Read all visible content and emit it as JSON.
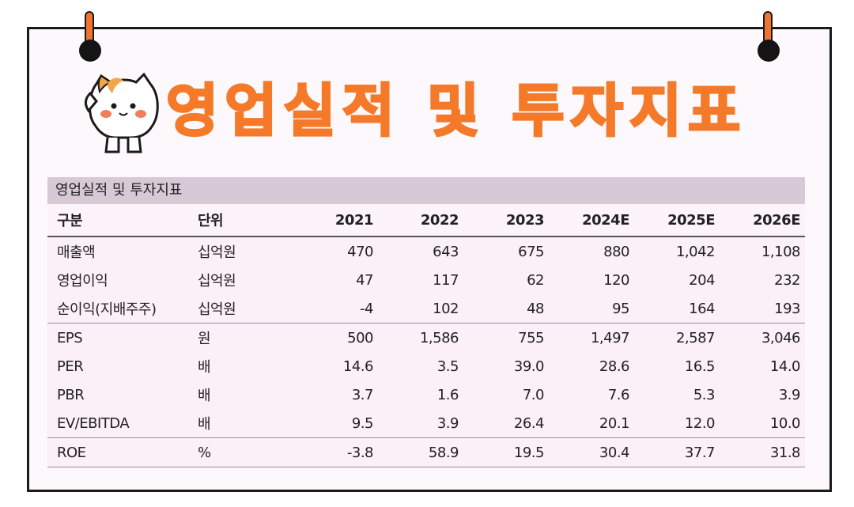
{
  "banner_title": "영업실적 및 투자지표",
  "table": {
    "caption": "영업실적 및 투자지표",
    "headers": [
      "구분",
      "단위",
      "2021",
      "2022",
      "2023",
      "2024E",
      "2025E",
      "2026E"
    ],
    "rows": [
      {
        "label": "매출액",
        "unit": "십억원",
        "values": [
          "470",
          "643",
          "675",
          "880",
          "1,042",
          "1,108"
        ]
      },
      {
        "label": "영업이익",
        "unit": "십억원",
        "values": [
          "47",
          "117",
          "62",
          "120",
          "204",
          "232"
        ]
      },
      {
        "label": "순이익(지배주주)",
        "unit": "십억원",
        "values": [
          "-4",
          "102",
          "48",
          "95",
          "164",
          "193"
        ]
      },
      {
        "label": "EPS",
        "unit": "원",
        "values": [
          "500",
          "1,586",
          "755",
          "1,497",
          "2,587",
          "3,046"
        ]
      },
      {
        "label": "PER",
        "unit": "배",
        "values": [
          "14.6",
          "3.5",
          "39.0",
          "28.6",
          "16.5",
          "14.0"
        ]
      },
      {
        "label": "PBR",
        "unit": "배",
        "values": [
          "3.7",
          "1.6",
          "7.0",
          "7.6",
          "5.3",
          "3.9"
        ]
      },
      {
        "label": "EV/EBITDA",
        "unit": "배",
        "values": [
          "9.5",
          "3.9",
          "26.4",
          "20.1",
          "12.0",
          "10.0"
        ]
      },
      {
        "label": "ROE",
        "unit": "%",
        "values": [
          "-3.8",
          "58.9",
          "19.5",
          "30.4",
          "37.7",
          "31.8"
        ]
      }
    ]
  },
  "colors": {
    "accent": "#f47a2a",
    "header_band": "#d8c9d7",
    "table_bg": "#fbeff8"
  },
  "icons": [
    "pushpin-icon",
    "cat-mascot-icon"
  ]
}
